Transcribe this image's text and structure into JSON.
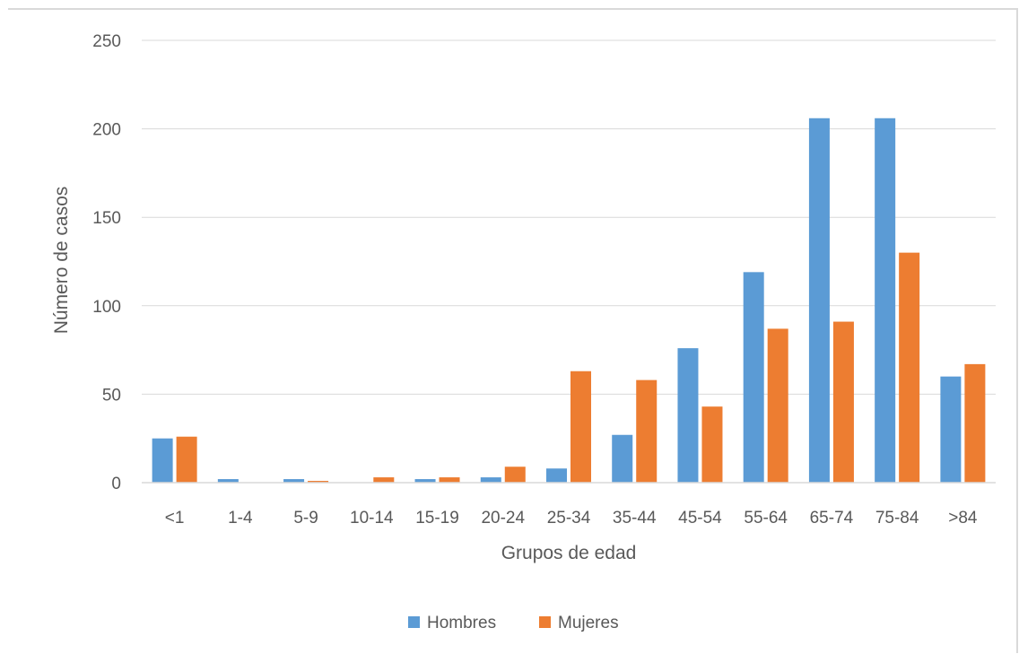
{
  "chart_data": {
    "type": "bar",
    "title": "",
    "xlabel": "Grupos de edad",
    "ylabel": "Número de casos",
    "ylim": [
      0,
      250
    ],
    "yticks": [
      0,
      50,
      100,
      150,
      200,
      250
    ],
    "grid": true,
    "legend_position": "bottom",
    "categories": [
      "<1",
      "1-4",
      "5-9",
      "10-14",
      "15-19",
      "20-24",
      "25-34",
      "35-44",
      "45-54",
      "55-64",
      "65-74",
      "75-84",
      ">84"
    ],
    "series": [
      {
        "name": "Hombres",
        "color": "#5b9bd5",
        "values": [
          25,
          2,
          2,
          0,
          2,
          3,
          8,
          27,
          76,
          119,
          206,
          206,
          60
        ]
      },
      {
        "name": "Mujeres",
        "color": "#ed7d31",
        "values": [
          26,
          0,
          1,
          3,
          3,
          9,
          63,
          58,
          43,
          87,
          91,
          130,
          67
        ]
      }
    ]
  }
}
